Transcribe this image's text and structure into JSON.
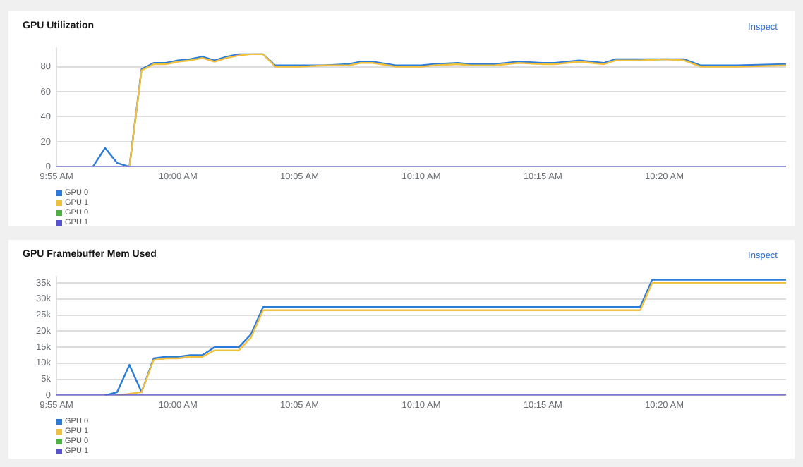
{
  "chart_data": [
    {
      "type": "line",
      "title": "GPU Utilization",
      "annotations": [
        "Inspect"
      ],
      "grid": "y",
      "legend": "bottom left",
      "marker": "none",
      "x": [
        9.9167,
        9.9417,
        9.95,
        9.9583,
        9.9667,
        9.975,
        9.9833,
        9.9917,
        10,
        10.0083,
        10.0167,
        10.025,
        10.0333,
        10.0417,
        10.05,
        10.0583,
        10.0667,
        10.0833,
        10.1,
        10.1167,
        10.125,
        10.1333,
        10.15,
        10.1667,
        10.175,
        10.1917,
        10.2,
        10.2167,
        10.2333,
        10.25,
        10.2583,
        10.275,
        10.2917,
        10.3,
        10.3167,
        10.3333,
        10.3467,
        10.3583,
        10.3833,
        10.4167
      ],
      "series": [
        {
          "name": "GPU 0",
          "color": "#2b7bd9",
          "values": [
            null,
            0,
            15,
            3,
            0,
            78,
            83,
            83,
            85,
            86,
            88,
            85,
            88,
            90,
            90,
            90,
            81,
            81,
            81,
            82,
            84,
            84,
            81,
            81,
            82,
            83,
            82,
            82,
            84,
            83,
            83,
            85,
            83,
            86,
            86,
            86,
            86,
            81,
            81,
            82
          ]
        },
        {
          "name": "GPU 1",
          "color": "#f0c040",
          "values": [
            null,
            null,
            null,
            null,
            0,
            77,
            82,
            82,
            84,
            85,
            87,
            84,
            87,
            89,
            90,
            90,
            80,
            80,
            81,
            81,
            83,
            83,
            80,
            80,
            81,
            82,
            81,
            81,
            83,
            82,
            82,
            84,
            82,
            85,
            85,
            86,
            85,
            80,
            80,
            81
          ]
        },
        {
          "name": "GPU 0",
          "color": "#4cb140",
          "values": [
            null,
            null,
            null,
            null,
            null,
            null,
            null,
            null,
            null,
            null,
            null,
            null,
            null,
            null,
            null,
            null,
            null,
            null,
            null,
            null,
            null,
            null,
            null,
            null,
            null,
            null,
            null,
            null,
            null,
            null,
            null,
            null,
            null,
            null,
            null,
            null,
            null,
            null,
            null,
            null
          ]
        },
        {
          "name": "GPU 1",
          "color": "#5752d1",
          "values": [
            0,
            0,
            0,
            0,
            0,
            0,
            0,
            0,
            0,
            0,
            0,
            0,
            0,
            0,
            0,
            0,
            0,
            0,
            0,
            0,
            0,
            0,
            0,
            0,
            0,
            0,
            0,
            0,
            0,
            0,
            0,
            0,
            0,
            0,
            0,
            0,
            0,
            0,
            0,
            0
          ]
        }
      ],
      "xlim": [
        9.9167,
        10.4167
      ],
      "xticks": [
        {
          "value": 9.9167,
          "label": "9:55 AM"
        },
        {
          "value": 10,
          "label": "10:00 AM"
        },
        {
          "value": 10.0833,
          "label": "10:05 AM"
        },
        {
          "value": 10.1667,
          "label": "10:10 AM"
        },
        {
          "value": 10.25,
          "label": "10:15 AM"
        },
        {
          "value": 10.3333,
          "label": "10:20 AM"
        }
      ],
      "ylim": [
        0,
        95
      ],
      "yticks": [
        0,
        20,
        40,
        60,
        80
      ]
    },
    {
      "type": "line",
      "title": "GPU Framebuffer Mem Used",
      "annotations": [
        "Inspect"
      ],
      "grid": "y",
      "legend": "bottom left",
      "marker": "none",
      "x": [
        9.9167,
        9.95,
        9.9583,
        9.9667,
        9.975,
        9.9833,
        9.9917,
        10,
        10.0083,
        10.0167,
        10.025,
        10.0333,
        10.0417,
        10.05,
        10.0583,
        10.3167,
        10.325,
        10.4167
      ],
      "series": [
        {
          "name": "GPU 0",
          "color": "#2b7bd9",
          "values": [
            null,
            0,
            1000,
            9500,
            1000,
            11500,
            12000,
            12000,
            12500,
            12500,
            15000,
            15000,
            15000,
            19000,
            27500,
            27500,
            36000,
            36000
          ]
        },
        {
          "name": "GPU 1",
          "color": "#f0c040",
          "values": [
            null,
            null,
            0,
            500,
            1000,
            11000,
            11500,
            11500,
            12000,
            12000,
            14000,
            14000,
            14000,
            18000,
            26500,
            26500,
            35000,
            35000
          ]
        },
        {
          "name": "GPU 0",
          "color": "#4cb140",
          "values": [
            null,
            null,
            null,
            null,
            null,
            null,
            null,
            null,
            null,
            null,
            null,
            null,
            null,
            null,
            null,
            null,
            null,
            null
          ]
        },
        {
          "name": "GPU 1",
          "color": "#5752d1",
          "values": [
            0,
            0,
            0,
            0,
            0,
            0,
            0,
            0,
            0,
            0,
            0,
            0,
            0,
            0,
            0,
            0,
            0,
            0
          ]
        }
      ],
      "xlim": [
        9.9167,
        10.4167
      ],
      "xticks": [
        {
          "value": 9.9167,
          "label": "9:55 AM"
        },
        {
          "value": 10,
          "label": "10:00 AM"
        },
        {
          "value": 10.0833,
          "label": "10:05 AM"
        },
        {
          "value": 10.1667,
          "label": "10:10 AM"
        },
        {
          "value": 10.25,
          "label": "10:15 AM"
        },
        {
          "value": 10.3333,
          "label": "10:20 AM"
        }
      ],
      "ylim": [
        0,
        37000
      ],
      "yticks": [
        0,
        {
          "value": 5000,
          "label": "5k"
        },
        {
          "value": 10000,
          "label": "10k"
        },
        {
          "value": 15000,
          "label": "15k"
        },
        {
          "value": 20000,
          "label": "20k"
        },
        {
          "value": 25000,
          "label": "25k"
        },
        {
          "value": 30000,
          "label": "30k"
        },
        {
          "value": 35000,
          "label": "35k"
        }
      ]
    }
  ]
}
